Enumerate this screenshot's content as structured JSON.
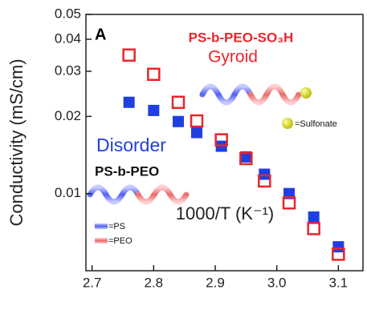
{
  "chart_data": {
    "type": "scatter",
    "panel_label": "A",
    "x_label": "1000/T (K⁻¹)",
    "y_label": "Conductivity (mS/cm)",
    "xlim": [
      2.69,
      3.14
    ],
    "xticks": [
      2.7,
      2.8,
      2.9,
      {
        "value": 3.0,
        "label": "3.0"
      },
      3.1
    ],
    "ylim": [
      0.005,
      0.05
    ],
    "yticks": [
      0.01,
      0.02,
      0.03,
      0.04,
      0.05
    ],
    "log_y": true,
    "grid": false,
    "series": [
      {
        "name": "PS-b-PEO",
        "color": "#1f3fe0",
        "filled": true,
        "phase": "Disorder",
        "x": [
          2.76,
          2.8,
          2.84,
          2.87,
          2.91,
          2.95,
          2.98,
          3.02,
          3.06,
          3.1
        ],
        "values": [
          0.0227,
          0.0211,
          0.0191,
          0.0173,
          0.0153,
          0.0139,
          0.0119,
          0.01,
          0.0081,
          0.0062
        ]
      },
      {
        "name": "PS-b-PEO-SO₃H",
        "color": "#e8262a",
        "filled": false,
        "phase": "Gyroid",
        "x": [
          2.76,
          2.8,
          2.84,
          2.87,
          2.91,
          2.95,
          2.98,
          3.02,
          3.06,
          3.1
        ],
        "values": [
          0.0347,
          0.0292,
          0.0227,
          0.0192,
          0.0162,
          0.0137,
          0.0112,
          0.0092,
          0.0073,
          0.0058
        ]
      }
    ],
    "key": {
      "ps": "=PS",
      "peo": "=PEO",
      "sulfonate": "=Sulfonate"
    }
  }
}
